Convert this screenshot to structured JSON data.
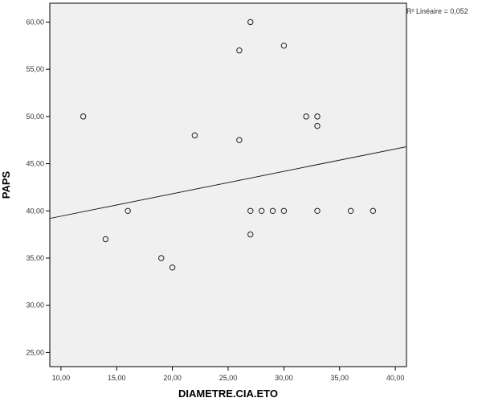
{
  "chart_data": {
    "type": "scatter",
    "xlabel": "DIAMETRE.CIA.ETO",
    "ylabel": "PAPS",
    "xlim": [
      9,
      41
    ],
    "ylim": [
      23.5,
      62
    ],
    "x_ticks": [
      10,
      15,
      20,
      25,
      30,
      35,
      40
    ],
    "x_tick_labels": [
      "10,00",
      "15,00",
      "20,00",
      "25,00",
      "30,00",
      "35,00",
      "40,00"
    ],
    "y_ticks": [
      25,
      30,
      35,
      40,
      45,
      50,
      55,
      60
    ],
    "y_tick_labels": [
      "25,00",
      "30,00",
      "35,00",
      "40,00",
      "45,00",
      "50,00",
      "55,00",
      "60,00"
    ],
    "grid": false,
    "points": [
      {
        "x": 12,
        "y": 50
      },
      {
        "x": 14,
        "y": 37
      },
      {
        "x": 16,
        "y": 40
      },
      {
        "x": 19,
        "y": 35
      },
      {
        "x": 20,
        "y": 34
      },
      {
        "x": 22,
        "y": 48
      },
      {
        "x": 26,
        "y": 57
      },
      {
        "x": 26,
        "y": 47.5
      },
      {
        "x": 27,
        "y": 60
      },
      {
        "x": 27,
        "y": 40
      },
      {
        "x": 27,
        "y": 37.5
      },
      {
        "x": 28,
        "y": 40
      },
      {
        "x": 29,
        "y": 40
      },
      {
        "x": 30,
        "y": 57.5
      },
      {
        "x": 30,
        "y": 40
      },
      {
        "x": 32,
        "y": 50
      },
      {
        "x": 33,
        "y": 50
      },
      {
        "x": 33,
        "y": 49
      },
      {
        "x": 33,
        "y": 40
      },
      {
        "x": 36,
        "y": 40
      },
      {
        "x": 38,
        "y": 40
      }
    ],
    "fit_line": {
      "x": [
        9,
        41
      ],
      "y": [
        39.2,
        46.8
      ]
    },
    "annotation": "R² Linéaire = 0,052",
    "colors": {
      "plot_background": "#f0f0f0",
      "marker_stroke": "#222222",
      "fit_line": "#222222",
      "axis": "#000000"
    }
  }
}
